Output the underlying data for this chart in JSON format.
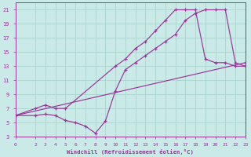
{
  "xlabel": "Windchill (Refroidissement éolien,°C)",
  "background_color": "#caeae8",
  "grid_color": "#aad4cc",
  "line_color": "#993399",
  "xlim": [
    0,
    23
  ],
  "ylim": [
    3,
    22
  ],
  "xticks": [
    0,
    2,
    3,
    4,
    5,
    6,
    7,
    8,
    9,
    10,
    11,
    12,
    13,
    14,
    15,
    16,
    17,
    18,
    19,
    20,
    21,
    22,
    23
  ],
  "yticks": [
    3,
    5,
    7,
    9,
    11,
    13,
    15,
    17,
    19,
    21
  ],
  "line1_x": [
    0,
    2,
    3,
    4,
    5,
    6,
    7,
    8,
    9,
    10,
    11,
    12,
    13,
    14,
    15,
    16,
    17,
    18,
    19,
    20,
    21,
    22,
    23
  ],
  "line1_y": [
    6,
    6,
    6.2,
    6,
    5.3,
    5.0,
    4.5,
    3.5,
    5.2,
    9.5,
    12.5,
    13.5,
    14.5,
    15.5,
    16.5,
    17.5,
    19.5,
    20.5,
    21,
    21,
    21,
    13.5,
    13
  ],
  "line2_x": [
    0,
    2,
    3,
    4,
    5,
    10,
    11,
    12,
    13,
    14,
    15,
    16,
    17,
    18,
    19,
    20,
    21,
    22,
    23
  ],
  "line2_y": [
    6,
    7,
    7.5,
    7,
    7,
    13,
    14,
    15.5,
    16.5,
    18,
    19.5,
    21,
    21,
    21,
    14,
    13.5,
    13.5,
    13,
    13
  ],
  "line3_x": [
    0,
    23
  ],
  "line3_y": [
    6,
    13.5
  ]
}
